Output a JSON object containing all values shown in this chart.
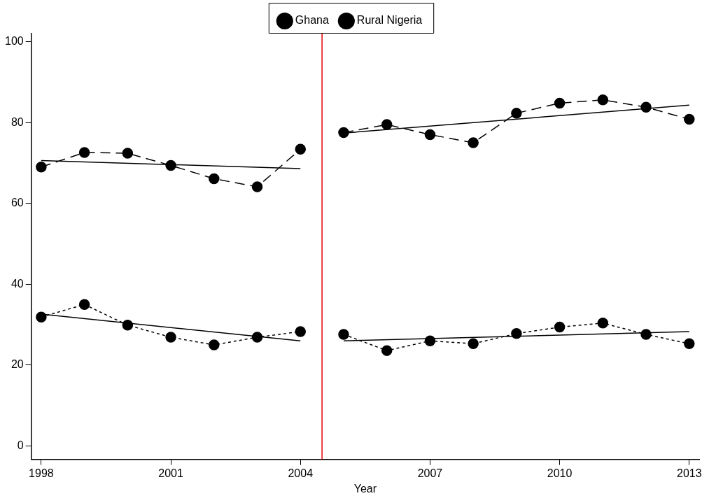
{
  "chart_data": {
    "type": "line",
    "xlabel": "Year",
    "xlim": [
      1997.77,
      2013.23
    ],
    "xticks": [
      1998,
      2001,
      2004,
      2007,
      2010,
      2013
    ],
    "ylim": [
      -3.3,
      102
    ],
    "yticks": [
      0,
      20,
      40,
      60,
      80,
      100
    ],
    "grid": false,
    "legend": "top",
    "marker": "circle",
    "x": [
      1998,
      1999,
      2000,
      2001,
      2002,
      2003,
      2004,
      2004.5,
      2005,
      2006,
      2007,
      2008,
      2009,
      2010,
      2011,
      2012,
      2013
    ],
    "series": [
      {
        "name": "Ghana",
        "color": "#000000",
        "line_style": "dashed",
        "values": [
          69,
          72.6,
          72.4,
          69.4,
          66.1,
          64.1,
          73.4,
          null,
          77.5,
          79.5,
          77,
          75,
          82.3,
          84.8,
          85.6,
          83.8,
          80.8
        ]
      },
      {
        "name": "Rural Nigeria",
        "color": "#000000",
        "line_style": "dotted",
        "values": [
          31.9,
          35,
          29.9,
          26.9,
          25,
          26.9,
          28.3,
          null,
          27.6,
          23.6,
          26,
          25.3,
          27.8,
          29.4,
          30.4,
          27.6,
          25.3
        ]
      },
      {
        "type": "line",
        "color": "#000000",
        "line_style": "solid",
        "marker": "none",
        "x": [
          1998,
          2004
        ],
        "values": [
          70.6,
          68.6
        ]
      },
      {
        "type": "line",
        "color": "#000000",
        "line_style": "solid",
        "marker": "none",
        "x": [
          2005,
          2013
        ],
        "values": [
          77.4,
          84.3
        ]
      },
      {
        "type": "line",
        "color": "#000000",
        "line_style": "solid",
        "marker": "none",
        "x": [
          1998,
          2004
        ],
        "values": [
          32.6,
          26
        ]
      },
      {
        "type": "line",
        "color": "#000000",
        "line_style": "solid",
        "marker": "none",
        "x": [
          2005,
          2013
        ],
        "values": [
          26,
          28.3
        ]
      }
    ],
    "ref_lines": [
      {
        "axis": "x",
        "value": 2004.5,
        "color": "#e00000",
        "line_style": "solid"
      }
    ]
  }
}
